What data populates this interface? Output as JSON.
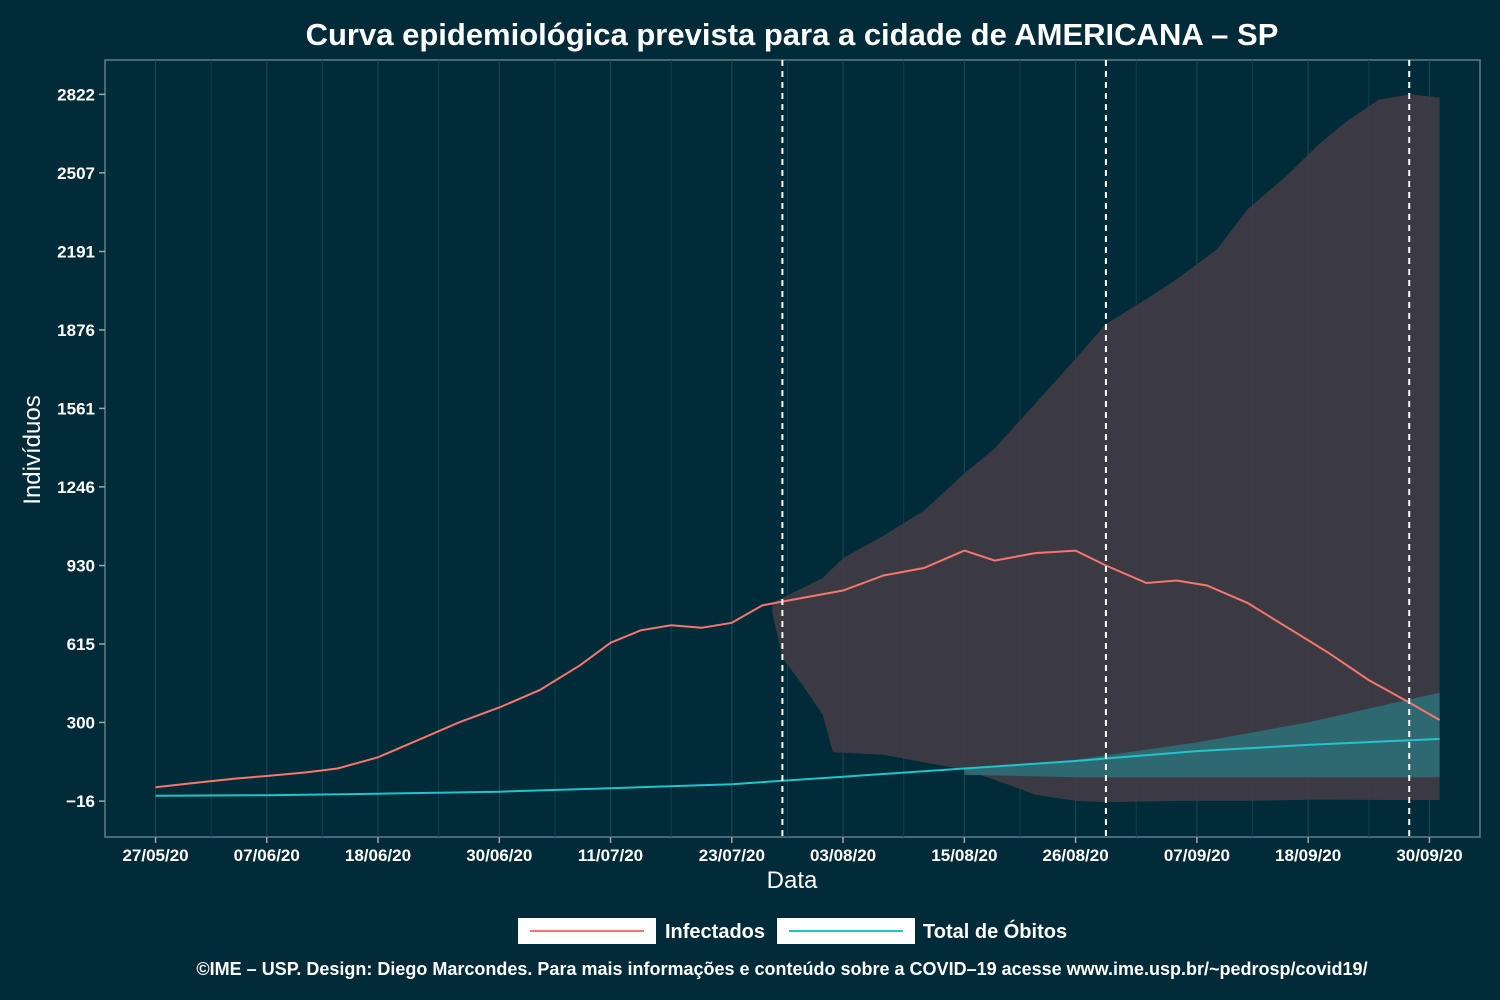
{
  "chart_data": {
    "type": "line",
    "title": "Curva epidemiológica prevista para a cidade de AMERICANA – SP",
    "xlabel": "Data",
    "ylabel": "Indivíduos",
    "x_ticks": [
      "27/05/20",
      "07/06/20",
      "18/06/20",
      "30/06/20",
      "11/07/20",
      "23/07/20",
      "03/08/20",
      "15/08/20",
      "26/08/20",
      "07/09/20",
      "18/09/20",
      "30/09/20"
    ],
    "y_ticks": [
      -16,
      300,
      615,
      930,
      1246,
      1561,
      1876,
      2191,
      2507,
      2822
    ],
    "x_range": [
      "2020-05-22",
      "2020-10-05"
    ],
    "y_range": [
      -160,
      2960
    ],
    "grid": true,
    "legend_position": "bottom",
    "vertical_dashed_lines": [
      "2020-07-28",
      "2020-08-29",
      "2020-09-28"
    ],
    "series": [
      {
        "name": "Infectados",
        "color": "#f8766d",
        "points": [
          [
            "2020-05-27",
            40
          ],
          [
            "2020-05-31",
            58
          ],
          [
            "2020-06-04",
            75
          ],
          [
            "2020-06-07",
            85
          ],
          [
            "2020-06-11",
            100
          ],
          [
            "2020-06-14",
            115
          ],
          [
            "2020-06-18",
            160
          ],
          [
            "2020-06-22",
            230
          ],
          [
            "2020-06-26",
            300
          ],
          [
            "2020-06-30",
            360
          ],
          [
            "2020-07-04",
            430
          ],
          [
            "2020-07-08",
            530
          ],
          [
            "2020-07-11",
            620
          ],
          [
            "2020-07-14",
            670
          ],
          [
            "2020-07-17",
            690
          ],
          [
            "2020-07-20",
            680
          ],
          [
            "2020-07-23",
            700
          ],
          [
            "2020-07-26",
            770
          ],
          [
            "2020-07-30",
            800
          ],
          [
            "2020-08-03",
            830
          ],
          [
            "2020-08-07",
            890
          ],
          [
            "2020-08-11",
            920
          ],
          [
            "2020-08-15",
            990
          ],
          [
            "2020-08-18",
            950
          ],
          [
            "2020-08-22",
            980
          ],
          [
            "2020-08-26",
            990
          ],
          [
            "2020-08-29",
            930
          ],
          [
            "2020-09-02",
            860
          ],
          [
            "2020-09-05",
            870
          ],
          [
            "2020-09-08",
            850
          ],
          [
            "2020-09-12",
            780
          ],
          [
            "2020-09-16",
            680
          ],
          [
            "2020-09-20",
            580
          ],
          [
            "2020-09-24",
            470
          ],
          [
            "2020-09-28",
            380
          ],
          [
            "2020-10-01",
            310
          ]
        ]
      },
      {
        "name": "Total de Óbitos",
        "color": "#20c4cc",
        "points": [
          [
            "2020-05-27",
            6
          ],
          [
            "2020-06-07",
            8
          ],
          [
            "2020-06-18",
            14
          ],
          [
            "2020-06-30",
            22
          ],
          [
            "2020-07-11",
            36
          ],
          [
            "2020-07-23",
            52
          ],
          [
            "2020-08-03",
            82
          ],
          [
            "2020-08-15",
            115
          ],
          [
            "2020-08-26",
            145
          ],
          [
            "2020-09-07",
            185
          ],
          [
            "2020-09-18",
            210
          ],
          [
            "2020-10-01",
            234
          ]
        ]
      }
    ],
    "bands": [
      {
        "series": "Infectados",
        "color": "#403c44",
        "upper": [
          [
            "2020-07-27",
            780
          ],
          [
            "2020-08-01",
            880
          ],
          [
            "2020-08-03",
            960
          ],
          [
            "2020-08-07",
            1050
          ],
          [
            "2020-08-11",
            1150
          ],
          [
            "2020-08-15",
            1300
          ],
          [
            "2020-08-18",
            1400
          ],
          [
            "2020-08-22",
            1580
          ],
          [
            "2020-08-26",
            1760
          ],
          [
            "2020-08-29",
            1900
          ],
          [
            "2020-09-02",
            2000
          ],
          [
            "2020-09-05",
            2080
          ],
          [
            "2020-09-09",
            2200
          ],
          [
            "2020-09-12",
            2360
          ],
          [
            "2020-09-16",
            2500
          ],
          [
            "2020-09-19",
            2620
          ],
          [
            "2020-09-22",
            2720
          ],
          [
            "2020-09-25",
            2800
          ],
          [
            "2020-09-28",
            2822
          ],
          [
            "2020-10-01",
            2810
          ]
        ],
        "lower": [
          [
            "2020-07-27",
            740
          ],
          [
            "2020-07-28",
            560
          ],
          [
            "2020-07-30",
            450
          ],
          [
            "2020-08-01",
            330
          ],
          [
            "2020-08-02",
            180
          ],
          [
            "2020-08-07",
            170
          ],
          [
            "2020-08-11",
            140
          ],
          [
            "2020-08-15",
            110
          ],
          [
            "2020-08-18",
            70
          ],
          [
            "2020-08-22",
            10
          ],
          [
            "2020-08-26",
            -15
          ],
          [
            "2020-08-29",
            -20
          ],
          [
            "2020-09-05",
            -15
          ],
          [
            "2020-09-12",
            -15
          ],
          [
            "2020-09-19",
            -10
          ],
          [
            "2020-09-28",
            -12
          ],
          [
            "2020-10-01",
            -12
          ]
        ]
      },
      {
        "series": "Total de Óbitos",
        "color": "#2e6d75",
        "upper": [
          [
            "2020-08-15",
            115
          ],
          [
            "2020-08-26",
            150
          ],
          [
            "2020-09-07",
            220
          ],
          [
            "2020-09-18",
            300
          ],
          [
            "2020-10-01",
            420
          ]
        ],
        "lower": [
          [
            "2020-08-15",
            90
          ],
          [
            "2020-08-26",
            80
          ],
          [
            "2020-09-07",
            80
          ],
          [
            "2020-09-18",
            80
          ],
          [
            "2020-10-01",
            80
          ]
        ]
      }
    ]
  },
  "legend": {
    "items": [
      {
        "label": "Infectados",
        "color": "#f8766d"
      },
      {
        "label": "Total de Óbitos",
        "color": "#20c4cc"
      }
    ]
  },
  "credit": "©IME – USP. Design: Diego Marcondes. Para mais informações e conteúdo sobre a COVID–19 acesse www.ime.usp.br/~pedrosp/covid19/"
}
